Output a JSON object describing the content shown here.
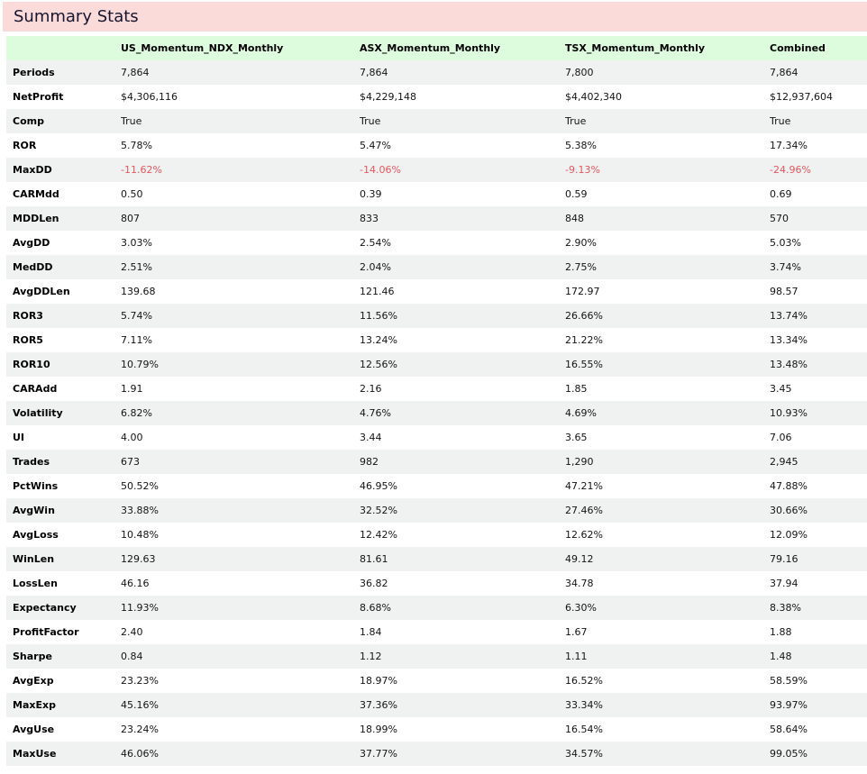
{
  "title": "Summary Stats",
  "colors": {
    "title_bar_bg": "#fbdada",
    "title_text": "#16162e",
    "header_row_bg": "#ddfbdd",
    "stripe_row_bg": "#f0f1f1",
    "negative_value": "#e8585f",
    "value_text": "#141414"
  },
  "table": {
    "columns": [
      "",
      "US_Momentum_NDX_Monthly",
      "ASX_Momentum_Monthly",
      "TSX_Momentum_Monthly",
      "Combined"
    ],
    "rows": [
      {
        "label": "Periods",
        "values": [
          "7,864",
          "7,864",
          "7,800",
          "7,864"
        ]
      },
      {
        "label": "NetProfit",
        "values": [
          "$4,306,116",
          "$4,229,148",
          "$4,402,340",
          "$12,937,604"
        ]
      },
      {
        "label": "Comp",
        "values": [
          "True",
          "True",
          "True",
          "True"
        ]
      },
      {
        "label": "ROR",
        "values": [
          "5.78%",
          "5.47%",
          "5.38%",
          "17.34%"
        ]
      },
      {
        "label": "MaxDD",
        "values": [
          "-11.62%",
          "-14.06%",
          "-9.13%",
          "-24.96%"
        ],
        "negative": true
      },
      {
        "label": "CARMdd",
        "values": [
          "0.50",
          "0.39",
          "0.59",
          "0.69"
        ]
      },
      {
        "label": "MDDLen",
        "values": [
          "807",
          "833",
          "848",
          "570"
        ]
      },
      {
        "label": "AvgDD",
        "values": [
          "3.03%",
          "2.54%",
          "2.90%",
          "5.03%"
        ]
      },
      {
        "label": "MedDD",
        "values": [
          "2.51%",
          "2.04%",
          "2.75%",
          "3.74%"
        ]
      },
      {
        "label": "AvgDDLen",
        "values": [
          "139.68",
          "121.46",
          "172.97",
          "98.57"
        ]
      },
      {
        "label": "ROR3",
        "values": [
          "5.74%",
          "11.56%",
          "26.66%",
          "13.74%"
        ]
      },
      {
        "label": "ROR5",
        "values": [
          "7.11%",
          "13.24%",
          "21.22%",
          "13.34%"
        ]
      },
      {
        "label": "ROR10",
        "values": [
          "10.79%",
          "12.56%",
          "16.55%",
          "13.48%"
        ]
      },
      {
        "label": "CARAdd",
        "values": [
          "1.91",
          "2.16",
          "1.85",
          "3.45"
        ]
      },
      {
        "label": "Volatility",
        "values": [
          "6.82%",
          "4.76%",
          "4.69%",
          "10.93%"
        ]
      },
      {
        "label": "UI",
        "values": [
          "4.00",
          "3.44",
          "3.65",
          "7.06"
        ]
      },
      {
        "label": "Trades",
        "values": [
          "673",
          "982",
          "1,290",
          "2,945"
        ]
      },
      {
        "label": "PctWins",
        "values": [
          "50.52%",
          "46.95%",
          "47.21%",
          "47.88%"
        ]
      },
      {
        "label": "AvgWin",
        "values": [
          "33.88%",
          "32.52%",
          "27.46%",
          "30.66%"
        ]
      },
      {
        "label": "AvgLoss",
        "values": [
          "10.48%",
          "12.42%",
          "12.62%",
          "12.09%"
        ]
      },
      {
        "label": "WinLen",
        "values": [
          "129.63",
          "81.61",
          "49.12",
          "79.16"
        ]
      },
      {
        "label": "LossLen",
        "values": [
          "46.16",
          "36.82",
          "34.78",
          "37.94"
        ]
      },
      {
        "label": "Expectancy",
        "values": [
          "11.93%",
          "8.68%",
          "6.30%",
          "8.38%"
        ]
      },
      {
        "label": "ProfitFactor",
        "values": [
          "2.40",
          "1.84",
          "1.67",
          "1.88"
        ]
      },
      {
        "label": "Sharpe",
        "values": [
          "0.84",
          "1.12",
          "1.11",
          "1.48"
        ]
      },
      {
        "label": "AvgExp",
        "values": [
          "23.23%",
          "18.97%",
          "16.52%",
          "58.59%"
        ]
      },
      {
        "label": "MaxExp",
        "values": [
          "45.16%",
          "37.36%",
          "33.34%",
          "93.97%"
        ]
      },
      {
        "label": "AvgUse",
        "values": [
          "23.24%",
          "18.99%",
          "16.54%",
          "58.64%"
        ]
      },
      {
        "label": "MaxUse",
        "values": [
          "46.06%",
          "37.77%",
          "34.57%",
          "99.05%"
        ]
      }
    ]
  }
}
